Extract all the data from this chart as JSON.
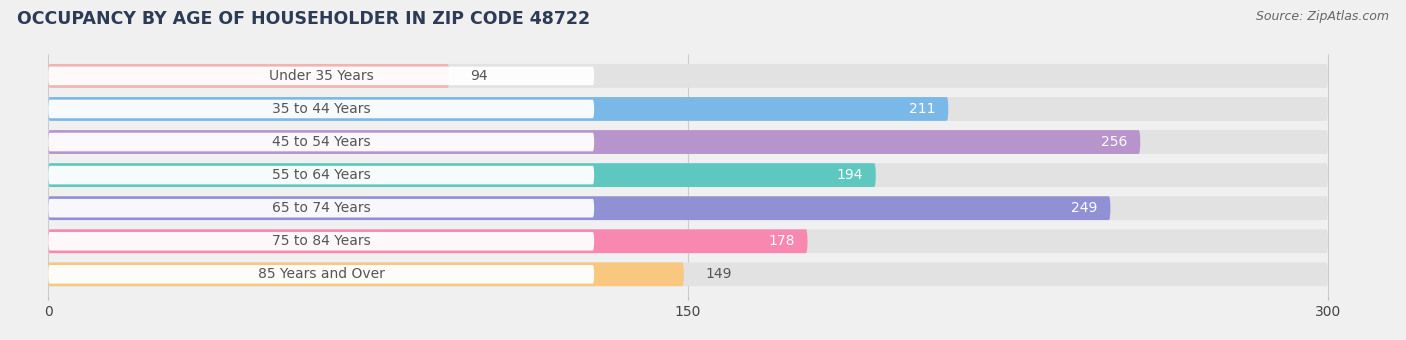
{
  "title": "OCCUPANCY BY AGE OF HOUSEHOLDER IN ZIP CODE 48722",
  "source": "Source: ZipAtlas.com",
  "categories": [
    "Under 35 Years",
    "35 to 44 Years",
    "45 to 54 Years",
    "55 to 64 Years",
    "65 to 74 Years",
    "75 to 84 Years",
    "85 Years and Over"
  ],
  "values": [
    94,
    211,
    256,
    194,
    249,
    178,
    149
  ],
  "bar_colors": [
    "#f2b3b3",
    "#7ab8e8",
    "#b894cc",
    "#5ec8c0",
    "#9090d4",
    "#f888b0",
    "#f8c880"
  ],
  "xlim_data": [
    0,
    300
  ],
  "xticks": [
    0,
    150,
    300
  ],
  "background_color": "#f0f0f0",
  "bar_bg_color": "#e2e2e2",
  "title_color": "#2d3b55",
  "source_color": "#666666",
  "label_color_dark": "#555555",
  "label_color_light": "#ffffff",
  "title_fontsize": 12.5,
  "source_fontsize": 9,
  "tick_fontsize": 10,
  "value_fontsize": 10,
  "category_fontsize": 10
}
